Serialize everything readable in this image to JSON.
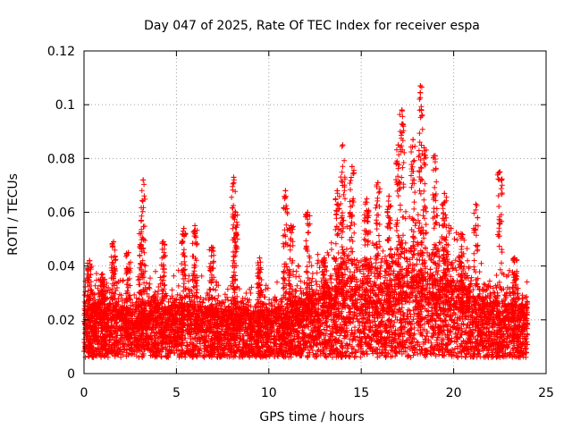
{
  "chart_data": {
    "type": "scatter",
    "title": "Day 047 of 2025, Rate Of TEC Index for receiver espa",
    "xlabel": "GPS time / hours",
    "ylabel": "ROTI / TECUs",
    "xlim": [
      0,
      25
    ],
    "ylim": [
      0,
      0.12
    ],
    "x_ticks": [
      0,
      5,
      10,
      15,
      20,
      25
    ],
    "x_tick_labels": [
      "0",
      "5",
      "10",
      "15",
      "20",
      "25"
    ],
    "y_ticks": [
      0,
      0.02,
      0.04,
      0.06,
      0.08,
      0.1,
      0.12
    ],
    "y_tick_labels": [
      "0",
      "0.02",
      "0.04",
      "0.06",
      "0.08",
      "0.1",
      "0.12"
    ],
    "grid": true,
    "marker": "+",
    "color": "#ff0000",
    "data_range_x": [
      0,
      24
    ],
    "envelope_x": [
      0,
      0.5,
      1,
      1.5,
      2,
      2.5,
      3,
      3.5,
      4,
      4.5,
      5,
      5.5,
      6,
      6.5,
      7,
      7.5,
      8,
      8.5,
      9,
      9.5,
      10,
      10.5,
      11,
      11.5,
      12,
      12.5,
      13,
      13.5,
      14,
      14.5,
      15,
      15.5,
      16,
      16.5,
      17,
      17.5,
      18,
      18.5,
      19,
      19.5,
      20,
      20.5,
      21,
      21.5,
      22,
      22.5,
      23,
      23.5,
      24
    ],
    "envelope_median": [
      0.015,
      0.016,
      0.017,
      0.016,
      0.015,
      0.014,
      0.016,
      0.017,
      0.016,
      0.015,
      0.016,
      0.017,
      0.016,
      0.015,
      0.015,
      0.014,
      0.015,
      0.015,
      0.014,
      0.014,
      0.014,
      0.015,
      0.016,
      0.017,
      0.018,
      0.019,
      0.02,
      0.021,
      0.023,
      0.024,
      0.023,
      0.022,
      0.022,
      0.023,
      0.025,
      0.026,
      0.027,
      0.026,
      0.025,
      0.024,
      0.023,
      0.021,
      0.019,
      0.018,
      0.017,
      0.017,
      0.016,
      0.016,
      0.015
    ],
    "peaks": [
      {
        "x": 0.3,
        "y": 0.042
      },
      {
        "x": 1.0,
        "y": 0.037
      },
      {
        "x": 1.6,
        "y": 0.049
      },
      {
        "x": 2.4,
        "y": 0.045
      },
      {
        "x": 3.1,
        "y": 0.057
      },
      {
        "x": 3.2,
        "y": 0.072
      },
      {
        "x": 4.3,
        "y": 0.049
      },
      {
        "x": 5.4,
        "y": 0.054
      },
      {
        "x": 6.0,
        "y": 0.055
      },
      {
        "x": 6.9,
        "y": 0.047
      },
      {
        "x": 8.1,
        "y": 0.073
      },
      {
        "x": 8.2,
        "y": 0.06
      },
      {
        "x": 9.5,
        "y": 0.043
      },
      {
        "x": 10.9,
        "y": 0.068
      },
      {
        "x": 11.2,
        "y": 0.055
      },
      {
        "x": 12.1,
        "y": 0.06
      },
      {
        "x": 13.0,
        "y": 0.043
      },
      {
        "x": 13.7,
        "y": 0.068
      },
      {
        "x": 14.0,
        "y": 0.085
      },
      {
        "x": 14.5,
        "y": 0.077
      },
      {
        "x": 15.3,
        "y": 0.065
      },
      {
        "x": 15.9,
        "y": 0.071
      },
      {
        "x": 16.5,
        "y": 0.066
      },
      {
        "x": 17.0,
        "y": 0.085
      },
      {
        "x": 17.2,
        "y": 0.098
      },
      {
        "x": 17.8,
        "y": 0.087
      },
      {
        "x": 18.2,
        "y": 0.107
      },
      {
        "x": 18.4,
        "y": 0.084
      },
      {
        "x": 19.0,
        "y": 0.081
      },
      {
        "x": 19.5,
        "y": 0.067
      },
      {
        "x": 20.4,
        "y": 0.052
      },
      {
        "x": 21.2,
        "y": 0.063
      },
      {
        "x": 22.5,
        "y": 0.075
      },
      {
        "x": 23.3,
        "y": 0.043
      }
    ]
  }
}
